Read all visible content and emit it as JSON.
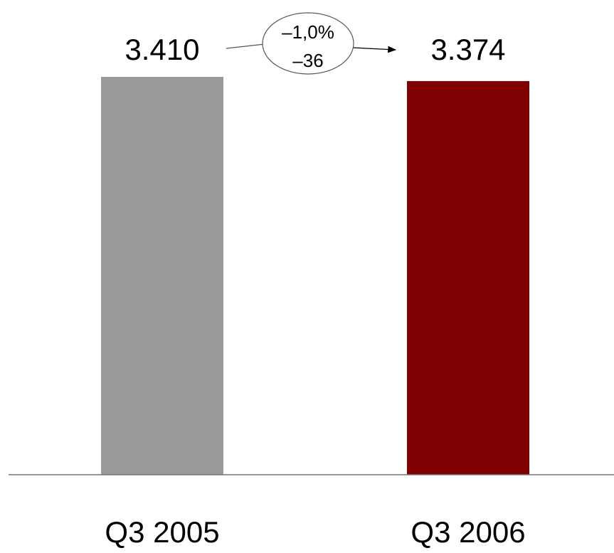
{
  "chart_data": {
    "type": "bar",
    "categories": [
      "Q3 2005",
      "Q3 2006"
    ],
    "values": [
      3410,
      3374
    ],
    "value_labels": [
      "3.410",
      "3.374"
    ],
    "colors": [
      "#999999",
      "#7f0000"
    ],
    "ylim": [
      0,
      3410
    ],
    "grid": false,
    "annotation": {
      "percent_change": "–1,0%",
      "absolute_change": "–36"
    }
  }
}
